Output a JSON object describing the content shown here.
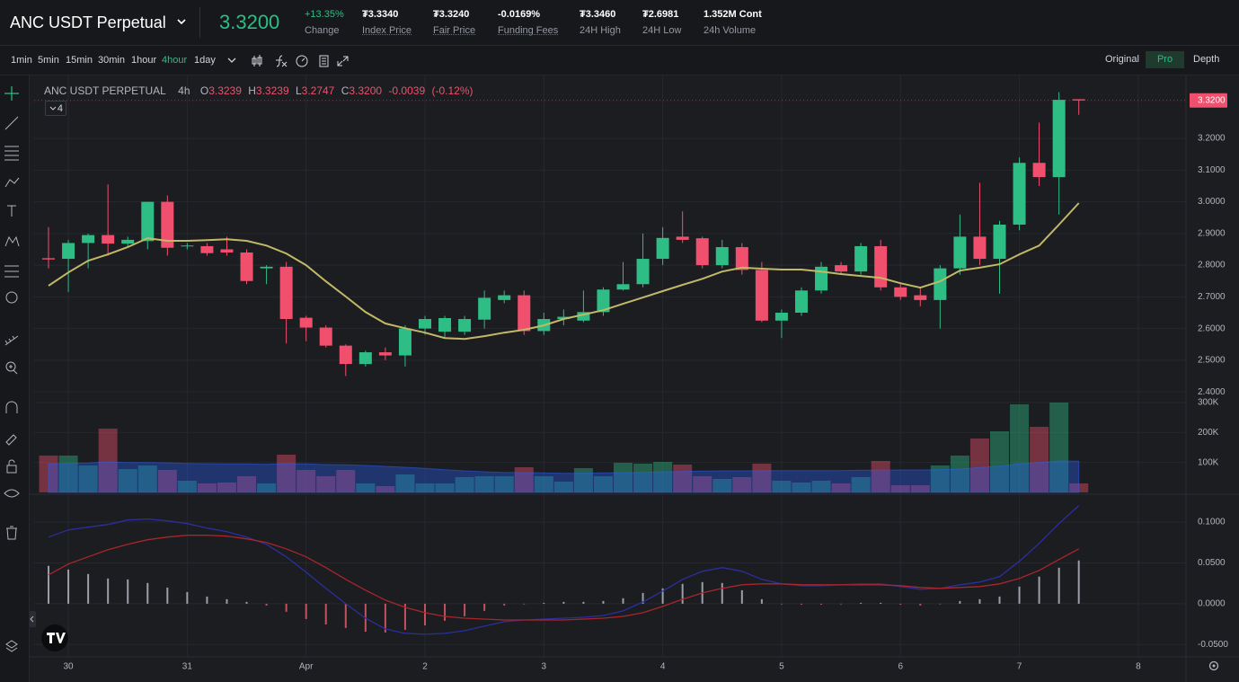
{
  "header": {
    "symbol": "ANC USDT Perpetual",
    "price": "3.3200",
    "stats": [
      {
        "value": "+13.35%",
        "label": "Change"
      },
      {
        "value": "₮3.3340",
        "label": "Index Price"
      },
      {
        "value": "₮3.3240",
        "label": "Fair Price"
      },
      {
        "value": "-0.0169%",
        "label": "Funding Fees"
      },
      {
        "value": "₮3.3460",
        "label": "24H High"
      },
      {
        "value": "₮2.6981",
        "label": "24H Low"
      },
      {
        "value": "1.352M Cont",
        "label": "24h Volume"
      }
    ]
  },
  "toolbar": {
    "intervals": [
      "1min",
      "5min",
      "15min",
      "30min",
      "1hour",
      "4hour",
      "1day"
    ],
    "views": [
      "Original",
      "Pro",
      "Depth"
    ]
  },
  "legend": {
    "symbol": "ANC USDT PERPETUAL",
    "interval": "4h",
    "ohlc": [
      {
        "label": "O",
        "value": "3.3239"
      },
      {
        "label": "H",
        "value": "3.3239"
      },
      {
        "label": "L",
        "value": "3.2747"
      },
      {
        "label": "C",
        "value": "3.3200"
      }
    ],
    "change": "-0.0039",
    "change_pct": "(-0.12%)",
    "studies": "4"
  },
  "chart_data": [
    {
      "type": "candlestick",
      "up_color": "#2ebd85",
      "down_color": "#f0506e",
      "open": [
        2.822,
        2.82,
        2.87,
        2.895,
        2.868,
        2.876,
        3.0,
        2.86,
        2.86,
        2.85,
        2.84,
        2.79,
        2.795,
        2.634,
        2.603,
        2.546,
        2.488,
        2.525,
        2.515,
        2.6,
        2.59,
        2.59,
        2.628,
        2.69,
        2.705,
        2.592,
        2.63,
        2.625,
        2.652,
        2.723,
        2.74,
        2.82,
        2.89,
        2.885,
        2.8,
        2.857,
        2.785,
        2.625,
        2.65,
        2.72,
        2.8,
        2.78,
        2.86,
        2.73,
        2.705,
        2.69,
        2.79,
        2.89,
        2.82,
        2.928,
        3.123,
        3.078,
        3.3239
      ],
      "high": [
        2.92,
        2.88,
        2.9,
        3.055,
        2.89,
        3.0,
        3.02,
        2.87,
        2.87,
        2.89,
        2.85,
        2.8,
        2.81,
        2.64,
        2.61,
        2.55,
        2.53,
        2.54,
        2.61,
        2.64,
        2.64,
        2.64,
        2.72,
        2.72,
        2.72,
        2.65,
        2.66,
        2.72,
        2.73,
        2.81,
        2.9,
        2.92,
        2.97,
        2.89,
        2.88,
        2.87,
        2.81,
        2.66,
        2.73,
        2.81,
        2.81,
        2.87,
        2.88,
        2.74,
        2.73,
        2.8,
        2.96,
        3.06,
        2.94,
        3.14,
        3.25,
        3.346,
        3.3239
      ],
      "low": [
        2.79,
        2.715,
        2.79,
        2.83,
        2.86,
        2.85,
        2.83,
        2.85,
        2.83,
        2.83,
        2.74,
        2.74,
        2.553,
        2.56,
        2.54,
        2.45,
        2.48,
        2.5,
        2.48,
        2.58,
        2.57,
        2.58,
        2.6,
        2.68,
        2.58,
        2.58,
        2.61,
        2.62,
        2.64,
        2.72,
        2.73,
        2.8,
        2.87,
        2.79,
        2.79,
        2.77,
        2.62,
        2.57,
        2.64,
        2.71,
        2.77,
        2.77,
        2.72,
        2.69,
        2.67,
        2.6,
        2.77,
        2.8,
        2.71,
        2.91,
        3.05,
        2.96,
        3.2747
      ],
      "close": [
        2.818,
        2.87,
        2.895,
        2.868,
        2.88,
        3.0,
        2.855,
        2.862,
        2.838,
        2.84,
        2.75,
        2.795,
        2.63,
        2.603,
        2.546,
        2.488,
        2.525,
        2.515,
        2.6,
        2.63,
        2.633,
        2.63,
        2.697,
        2.705,
        2.592,
        2.63,
        2.637,
        2.652,
        2.723,
        2.74,
        2.82,
        2.886,
        2.88,
        2.8,
        2.857,
        2.785,
        2.625,
        2.65,
        2.72,
        2.795,
        2.78,
        2.86,
        2.73,
        2.7,
        2.69,
        2.79,
        2.89,
        2.82,
        2.928,
        3.123,
        3.078,
        3.322,
        3.32
      ],
      "overlays": [
        {
          "color": "#c2b968",
          "values": [
            2.735,
            2.777,
            2.814,
            2.834,
            2.857,
            2.885,
            2.877,
            2.877,
            2.879,
            2.882,
            2.877,
            2.862,
            2.837,
            2.8,
            2.749,
            2.701,
            2.652,
            2.616,
            2.601,
            2.587,
            2.57,
            2.567,
            2.576,
            2.587,
            2.596,
            2.61,
            2.63,
            2.644,
            2.658,
            2.678,
            2.698,
            2.718,
            2.738,
            2.757,
            2.78,
            2.792,
            2.789,
            2.786,
            2.786,
            2.78,
            2.772,
            2.766,
            2.76,
            2.743,
            2.729,
            2.749,
            2.783,
            2.792,
            2.803,
            2.834,
            2.862,
            2.928,
            2.996
          ]
        }
      ],
      "last_price": {
        "value": 3.32,
        "label": "3.3200"
      },
      "ylim": [
        2.389,
        3.396
      ],
      "yticks": [
        {
          "value": 3.2,
          "label": "3.2000"
        },
        {
          "value": 3.1,
          "label": "3.1000"
        },
        {
          "value": 3.0,
          "label": "3.0000"
        },
        {
          "value": 2.9,
          "label": "2.9000"
        },
        {
          "value": 2.8,
          "label": "2.8000"
        },
        {
          "value": 2.7,
          "label": "2.7000"
        },
        {
          "value": 2.6,
          "label": "2.6000"
        },
        {
          "value": 2.5,
          "label": "2.5000"
        },
        {
          "value": 2.4,
          "label": "2.4000"
        }
      ],
      "grid": true
    },
    {
      "type": "bar",
      "values": [
        123000,
        123000,
        90000,
        213000,
        78000,
        90000,
        75000,
        39000,
        30000,
        33000,
        54000,
        30000,
        126000,
        75000,
        54000,
        75000,
        30000,
        21000,
        60000,
        30000,
        30000,
        51000,
        54000,
        54000,
        84000,
        54000,
        36000,
        81000,
        54000,
        99000,
        96000,
        102000,
        93000,
        54000,
        45000,
        51000,
        96000,
        39000,
        33000,
        39000,
        30000,
        51000,
        105000,
        24000,
        24000,
        90000,
        123000,
        180000,
        204000,
        294000,
        219000,
        300000,
        30000
      ],
      "overlays": [
        {
          "color": "#2962ff",
          "values": [
            95000,
            97000,
            98000,
            102000,
            100000,
            100000,
            99000,
            97000,
            96000,
            95000,
            95000,
            94000,
            96000,
            95000,
            93000,
            92000,
            90000,
            87000,
            84000,
            80000,
            76000,
            72000,
            69000,
            67000,
            66000,
            65000,
            64000,
            64000,
            65000,
            66000,
            67000,
            69000,
            70000,
            71000,
            72000,
            72000,
            73000,
            73000,
            73000,
            73000,
            73000,
            74000,
            74000,
            75000,
            75000,
            76000,
            78000,
            83000,
            88000,
            95000,
            100000,
            105000,
            104000
          ]
        }
      ],
      "ylim": [
        0,
        324000
      ],
      "yticks": [
        {
          "value": 300000,
          "label": "300K"
        },
        {
          "value": 200000,
          "label": "200K"
        },
        {
          "value": 100000,
          "label": "100K"
        }
      ],
      "grid": true
    },
    {
      "type": "line",
      "series": [
        {
          "color": "#2b2f9e",
          "values": [
            0.0817,
            0.0905,
            0.0938,
            0.0971,
            0.1026,
            0.1038,
            0.1015,
            0.0982,
            0.0927,
            0.0883,
            0.0817,
            0.0728,
            0.0574,
            0.0386,
            0.0188,
            0,
            -0.0177,
            -0.0309,
            -0.0364,
            -0.0375,
            -0.0364,
            -0.0331,
            -0.0276,
            -0.0221,
            -0.0199,
            -0.0188,
            -0.0177,
            -0.0166,
            -0.0144,
            -0.0088,
            0.0022,
            0.0155,
            0.0298,
            0.0397,
            0.0442,
            0.0397,
            0.0298,
            0.0243,
            0.0221,
            0.0221,
            0.0232,
            0.0243,
            0.0243,
            0.021,
            0.0177,
            0.0188,
            0.0232,
            0.0265,
            0.0331,
            0.0519,
            0.074,
            0.0982,
            0.1203
          ]
        },
        {
          "color": "#a8262c",
          "values": [
            0.0353,
            0.0486,
            0.0574,
            0.0662,
            0.0728,
            0.0784,
            0.0817,
            0.0839,
            0.0839,
            0.0828,
            0.0795,
            0.0751,
            0.0673,
            0.0574,
            0.0442,
            0.0298,
            0.0166,
            0.0044,
            -0.0044,
            -0.011,
            -0.0155,
            -0.0177,
            -0.0188,
            -0.0199,
            -0.0199,
            -0.0199,
            -0.0199,
            -0.0188,
            -0.0177,
            -0.0155,
            -0.011,
            -0.0033,
            0.0055,
            0.0132,
            0.0188,
            0.0232,
            0.0243,
            0.0243,
            0.0232,
            0.0232,
            0.0232,
            0.0232,
            0.0232,
            0.0221,
            0.0199,
            0.0188,
            0.0199,
            0.021,
            0.0243,
            0.0309,
            0.0408,
            0.0541,
            0.0673
          ]
        }
      ],
      "histogram": {
        "up_color": "#b2b5be",
        "down_color": "#e05a6a",
        "values": [
          0.0464,
          0.0419,
          0.0364,
          0.0309,
          0.0298,
          0.0254,
          0.0198,
          0.0143,
          0.0088,
          0.0055,
          0.0022,
          -0.0023,
          -0.0099,
          -0.0188,
          -0.0254,
          -0.0298,
          -0.0343,
          -0.0353,
          -0.032,
          -0.0265,
          -0.0209,
          -0.0154,
          -0.0088,
          -0.0022,
          0,
          0.0011,
          0.0022,
          0.0022,
          0.0033,
          0.0067,
          0.0132,
          0.0188,
          0.0243,
          0.0265,
          0.0254,
          0.0165,
          0.0055,
          0,
          -0.0011,
          -0.0011,
          0,
          0.0011,
          0.0011,
          -0.0011,
          -0.0022,
          0,
          0.0033,
          0.0055,
          0.0088,
          0.021,
          0.0332,
          0.0441,
          0.053
        ]
      },
      "ylim": [
        -0.064,
        0.132
      ],
      "yticks": [
        {
          "value": 0.1,
          "label": "0.1000"
        },
        {
          "value": 0.05,
          "label": "0.0500"
        },
        {
          "value": 0,
          "label": "0.0000"
        },
        {
          "value": -0.05,
          "label": "-0.0500"
        }
      ],
      "xlim": [
        -0.726,
        57.41
      ],
      "xticks": [
        {
          "value": 1,
          "label": "30"
        },
        {
          "value": 7,
          "label": "31"
        },
        {
          "value": 13,
          "label": "Apr"
        },
        {
          "value": 19,
          "label": "2"
        },
        {
          "value": 25,
          "label": "3"
        },
        {
          "value": 31,
          "label": "4"
        },
        {
          "value": 37,
          "label": "5"
        },
        {
          "value": 43,
          "label": "6"
        },
        {
          "value": 49,
          "label": "7"
        },
        {
          "value": 55,
          "label": "8"
        }
      ],
      "grid": true
    }
  ]
}
